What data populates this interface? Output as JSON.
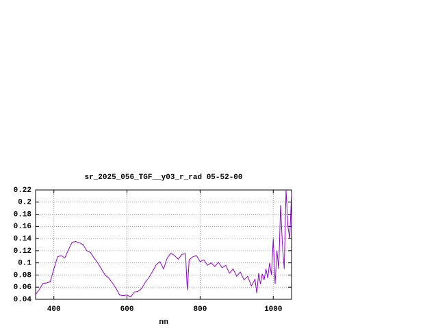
{
  "chart_data": {
    "type": "line",
    "title": "sr_2025_056_TGF__y03_r_rad 05-52-00",
    "xlabel": "nm",
    "xlim": [
      350,
      1050
    ],
    "xticks": [
      400,
      600,
      800,
      1000
    ],
    "ylim": [
      0.04,
      0.22
    ],
    "yticks": [
      0.04,
      0.06,
      0.08,
      0.1,
      0.12,
      0.14,
      0.16,
      0.18,
      0.2,
      0.22
    ],
    "grid": true,
    "series": [
      {
        "color": "#9400d3",
        "x": [
          350,
          360,
          370,
          380,
          390,
          400,
          410,
          420,
          430,
          440,
          450,
          460,
          470,
          480,
          490,
          500,
          510,
          520,
          530,
          540,
          550,
          560,
          570,
          580,
          590,
          600,
          610,
          620,
          630,
          640,
          650,
          660,
          670,
          680,
          690,
          700,
          710,
          720,
          730,
          740,
          750,
          760,
          765,
          770,
          780,
          790,
          800,
          810,
          820,
          830,
          840,
          850,
          860,
          870,
          880,
          890,
          900,
          910,
          920,
          930,
          940,
          950,
          955,
          960,
          965,
          970,
          975,
          980,
          985,
          990,
          995,
          1000,
          1005,
          1010,
          1015,
          1020,
          1025,
          1030,
          1035,
          1040,
          1045,
          1050
        ],
        "values": [
          0.048,
          0.056,
          0.066,
          0.067,
          0.069,
          0.09,
          0.11,
          0.112,
          0.108,
          0.122,
          0.134,
          0.135,
          0.133,
          0.13,
          0.12,
          0.117,
          0.108,
          0.1,
          0.09,
          0.08,
          0.075,
          0.067,
          0.058,
          0.047,
          0.046,
          0.047,
          0.044,
          0.052,
          0.053,
          0.058,
          0.068,
          0.076,
          0.086,
          0.097,
          0.102,
          0.09,
          0.108,
          0.116,
          0.112,
          0.106,
          0.114,
          0.115,
          0.055,
          0.105,
          0.11,
          0.112,
          0.102,
          0.105,
          0.096,
          0.1,
          0.094,
          0.101,
          0.092,
          0.096,
          0.083,
          0.09,
          0.078,
          0.085,
          0.072,
          0.078,
          0.062,
          0.073,
          0.05,
          0.083,
          0.065,
          0.082,
          0.072,
          0.09,
          0.075,
          0.1,
          0.08,
          0.14,
          0.065,
          0.12,
          0.09,
          0.195,
          0.13,
          0.09,
          0.22,
          0.16,
          0.14,
          0.215
        ]
      }
    ]
  }
}
